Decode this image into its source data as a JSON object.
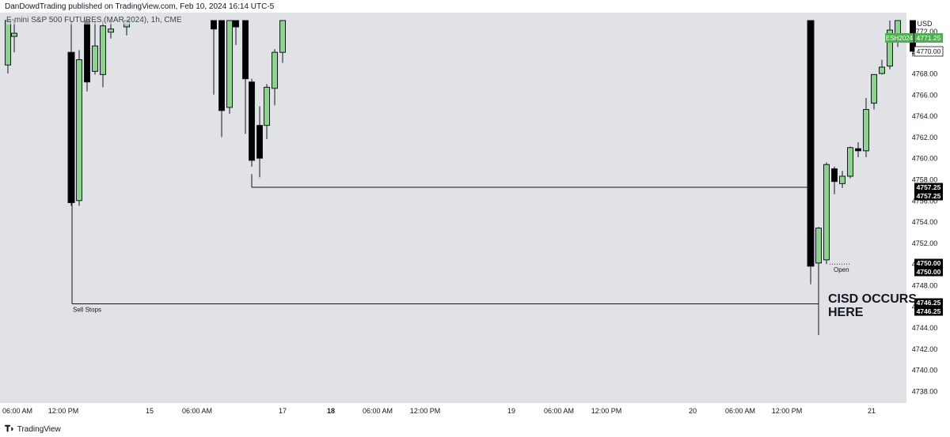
{
  "header": {
    "publisher": "DanDowdTrading published on TradingView.com, Feb 10, 2024 16:14 UTC-5",
    "symbol_legend": "E-mini S&P 500 FUTURES (MAR 2024), 1h, CME"
  },
  "footer": {
    "logo_icon": "tradingview-logo-icon",
    "brand": "TradingView"
  },
  "chart_data": {
    "type": "candlestick",
    "yaxis": {
      "currency": "USD",
      "ticks": [
        "4770.00",
        "4768.00",
        "4766.00",
        "4764.00",
        "4762.00",
        "4760.00",
        "4758.00",
        "4756.00",
        "4754.00",
        "4752.00",
        "4750.00",
        "4748.00",
        "4746.00",
        "4744.00",
        "4742.00",
        "4740.00",
        "4738.00"
      ],
      "range": [
        4737,
        4773
      ],
      "partial_top_tick": "4772.00"
    },
    "xaxis": {
      "ticks": [
        "06:00 AM",
        "12:00 PM",
        "15",
        "06:00 AM",
        "17",
        "18",
        "06:00 AM",
        "12:00 PM",
        "19",
        "06:00 AM",
        "12:00 PM",
        "20",
        "06:00 AM",
        "12:00 PM",
        "21"
      ],
      "bold_ticks": [
        "18"
      ]
    },
    "price_labels": [
      {
        "label": "ESH2024",
        "value": "4771.25",
        "color": "#4caf50"
      },
      {
        "value": "4770.00",
        "style": "outline"
      },
      {
        "value": "4757.25",
        "style": "dark"
      },
      {
        "value": "4757.25",
        "style": "dark"
      },
      {
        "value": "4750.00",
        "style": "dark"
      },
      {
        "value": "4750.00",
        "style": "dark"
      },
      {
        "value": "4746.25",
        "style": "dark"
      },
      {
        "value": "4746.25",
        "style": "dark"
      }
    ],
    "levels": [
      {
        "price": 4757.25,
        "from_x": 318,
        "to_x": 1020
      },
      {
        "price": 4746.25,
        "from_x": 91,
        "to_x": 1034,
        "label": "Sell Stops"
      },
      {
        "price": 4750.0,
        "from_x": 1048,
        "to_x": 1073,
        "label": "Open",
        "dotted": true
      }
    ],
    "annotations": [
      "CISD OCCURS",
      "HERE"
    ],
    "candles": [
      {
        "x": 10,
        "o": 4768.8,
        "c": 4773,
        "h": 4773,
        "l": 4768,
        "bull": true
      },
      {
        "x": 18,
        "o": 4771.5,
        "c": 4771.8,
        "h": 4773,
        "l": 4770,
        "bull": true
      },
      {
        "x": 90,
        "o": 4770,
        "c": 4755.8,
        "h": 4773,
        "l": 4755.5,
        "bull": false
      },
      {
        "x": 100,
        "o": 4756,
        "c": 4769.3,
        "h": 4770.2,
        "l": 4755.5,
        "bull": true
      },
      {
        "x": 110,
        "o": 4773,
        "c": 4767.2,
        "h": 4773,
        "l": 4766.3,
        "bull": false
      },
      {
        "x": 120,
        "o": 4768.2,
        "c": 4770.6,
        "h": 4773,
        "l": 4767.9,
        "bull": true
      },
      {
        "x": 130,
        "o": 4767.9,
        "c": 4772.5,
        "h": 4773,
        "l": 4766.7,
        "bull": true
      },
      {
        "x": 140,
        "o": 4772.2,
        "c": 4771.9,
        "h": 4773,
        "l": 4771.3,
        "bull": true
      },
      {
        "x": 160,
        "o": 4772.4,
        "c": 4773,
        "h": 4773,
        "l": 4771.6,
        "bull": true
      },
      {
        "x": 270,
        "o": 4773,
        "c": 4772.2,
        "h": 4773,
        "l": 4766,
        "bull": false
      },
      {
        "x": 280,
        "o": 4773,
        "c": 4764.5,
        "h": 4773,
        "l": 4762,
        "bull": false
      },
      {
        "x": 290,
        "o": 4764.8,
        "c": 4773,
        "h": 4773,
        "l": 4764.2,
        "bull": true
      },
      {
        "x": 298,
        "o": 4773,
        "c": 4772.4,
        "h": 4773,
        "l": 4770.7,
        "bull": false
      },
      {
        "x": 310,
        "o": 4773,
        "c": 4767.5,
        "h": 4773,
        "l": 4762.3,
        "bull": false
      },
      {
        "x": 318,
        "o": 4767.2,
        "c": 4759.8,
        "h": 4767.5,
        "l": 4759.2,
        "bull": false
      },
      {
        "x": 328,
        "o": 4763.1,
        "c": 4760,
        "h": 4764.9,
        "l": 4758.2,
        "bull": false
      },
      {
        "x": 337,
        "o": 4763.1,
        "c": 4766.7,
        "h": 4767,
        "l": 4761.8,
        "bull": true
      },
      {
        "x": 347,
        "o": 4766.6,
        "c": 4770,
        "h": 4770.3,
        "l": 4765,
        "bull": true
      },
      {
        "x": 357,
        "o": 4770,
        "c": 4773,
        "h": 4773,
        "l": 4769,
        "bull": true
      },
      {
        "x": 1024,
        "o": 4773,
        "c": 4749.8,
        "h": 4773,
        "l": 4748.1,
        "bull": false
      },
      {
        "x": 1034,
        "o": 4750.1,
        "c": 4753.4,
        "h": 4753.5,
        "l": 4743.3,
        "bull": true
      },
      {
        "x": 1044,
        "o": 4750.4,
        "c": 4759.4,
        "h": 4759.6,
        "l": 4750,
        "bull": true
      },
      {
        "x": 1054,
        "o": 4759,
        "c": 4757.8,
        "h": 4759.2,
        "l": 4756.6,
        "bull": false
      },
      {
        "x": 1064,
        "o": 4757.6,
        "c": 4758.3,
        "h": 4758.8,
        "l": 4757.2,
        "bull": true
      },
      {
        "x": 1074,
        "o": 4758.3,
        "c": 4761,
        "h": 4761.1,
        "l": 4758.1,
        "bull": true
      },
      {
        "x": 1084,
        "o": 4760.9,
        "c": 4760.7,
        "h": 4761.5,
        "l": 4760.1,
        "bull": false
      },
      {
        "x": 1094,
        "o": 4760.7,
        "c": 4764.6,
        "h": 4765.7,
        "l": 4760.1,
        "bull": true
      },
      {
        "x": 1104,
        "o": 4765.2,
        "c": 4767.9,
        "h": 4767.9,
        "l": 4764.6,
        "bull": true
      },
      {
        "x": 1114,
        "o": 4768,
        "c": 4768.6,
        "h": 4769.3,
        "l": 4767.9,
        "bull": true
      },
      {
        "x": 1124,
        "o": 4768.7,
        "c": 4772.1,
        "h": 4773,
        "l": 4768.4,
        "bull": true
      },
      {
        "x": 1134,
        "o": 4771.2,
        "c": 4773,
        "h": 4773,
        "l": 4770.5,
        "bull": true
      },
      {
        "x": 1153,
        "o": 4773,
        "c": 4770.1,
        "h": 4773,
        "l": 4769.6,
        "bull": false
      }
    ]
  }
}
